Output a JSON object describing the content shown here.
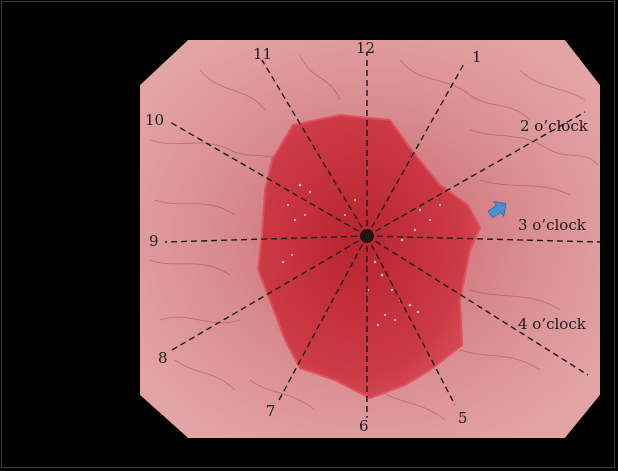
{
  "image": {
    "subject": "endoscopic view with clock-position overlay",
    "colors": {
      "background": "#000000",
      "mucosa": "#d98c90",
      "mucosa_dark": "#b85a62",
      "lesion": "#c8323c",
      "lesion_edge": "#e05060",
      "line": "#1a1a1a",
      "arrow": "#4a90d0"
    }
  },
  "clock": {
    "hour_labels": [
      "12",
      "1",
      "5",
      "6",
      "7",
      "8",
      "9",
      "10",
      "11"
    ],
    "side_labels": [
      "2 o’clock",
      "3 o’clock",
      "4 o’clock"
    ]
  },
  "marker": {
    "icon": "pointer-arrow-icon"
  }
}
